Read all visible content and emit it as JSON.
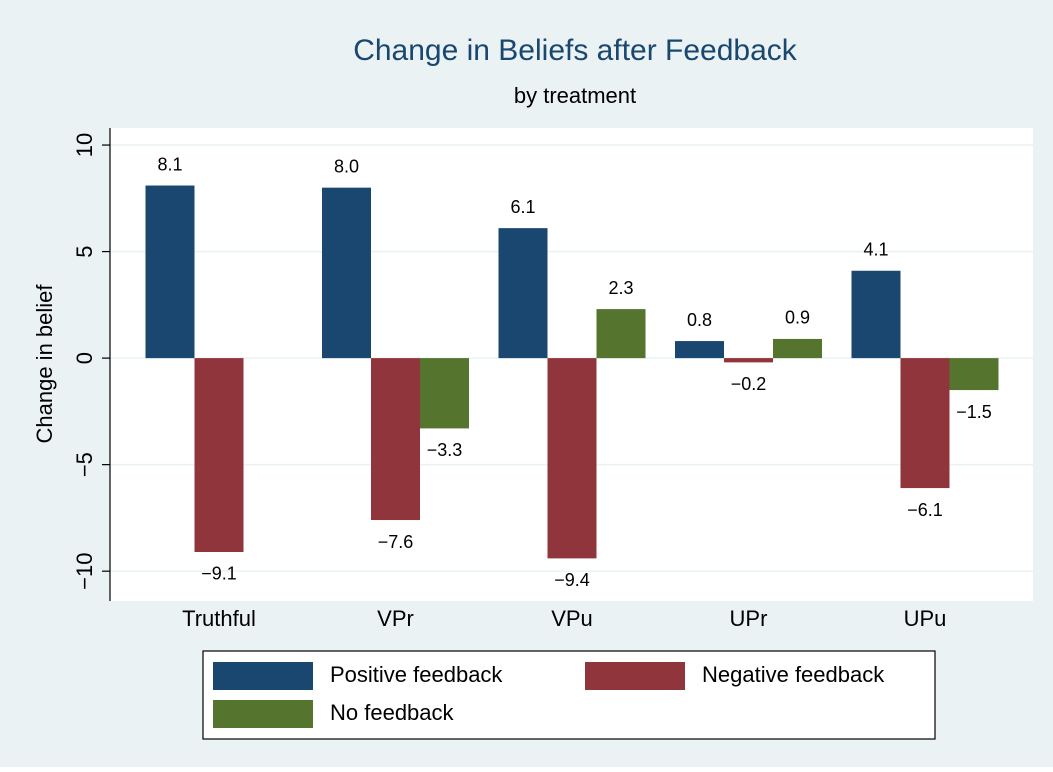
{
  "chart_data": {
    "type": "bar",
    "title": "Change in Beliefs after Feedback",
    "subtitle": "by treatment",
    "y_label": "Change in belief",
    "categories": [
      "Truthful",
      "VPr",
      "VPu",
      "UPr",
      "UPu"
    ],
    "series": [
      {
        "name": "Positive feedback",
        "color": "#1a476f",
        "values": [
          8.1,
          8.0,
          6.1,
          0.8,
          4.1
        ],
        "value_labels": [
          "8.1",
          "8.0",
          "6.1",
          "0.8",
          "4.1"
        ]
      },
      {
        "name": "Negative feedback",
        "color": "#90353b",
        "values": [
          -9.1,
          -7.6,
          -9.4,
          -0.2,
          -6.1
        ],
        "value_labels": [
          "−9.1",
          "−7.6",
          "−9.4",
          "−0.2",
          "−6.1"
        ]
      },
      {
        "name": "No feedback",
        "color": "#55752f",
        "values": [
          null,
          -3.3,
          2.3,
          0.9,
          -1.5
        ],
        "value_labels": [
          null,
          "−3.3",
          "2.3",
          "0.9",
          "−1.5"
        ]
      }
    ],
    "ylim": [
      -11.4,
      10.8
    ],
    "yticks": [
      {
        "value": -10,
        "label": "−10"
      },
      {
        "value": -5,
        "label": "−5"
      },
      0,
      5,
      10
    ],
    "grid": true,
    "legend": "bottom"
  }
}
